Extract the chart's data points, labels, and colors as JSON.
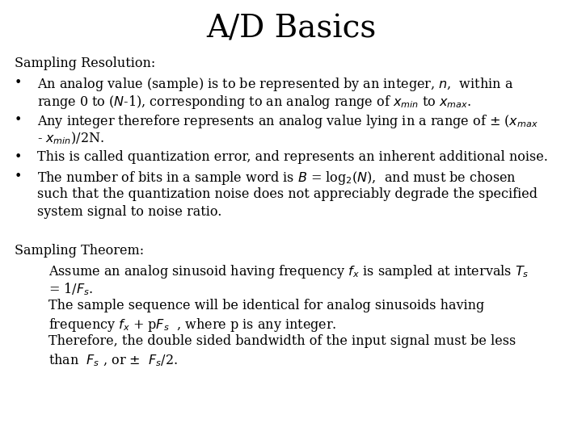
{
  "title": "A/D Basics",
  "background_color": "#ffffff",
  "text_color": "#000000",
  "title_fontsize": 28,
  "body_fontsize": 11.5,
  "font_family": "DejaVu Serif"
}
